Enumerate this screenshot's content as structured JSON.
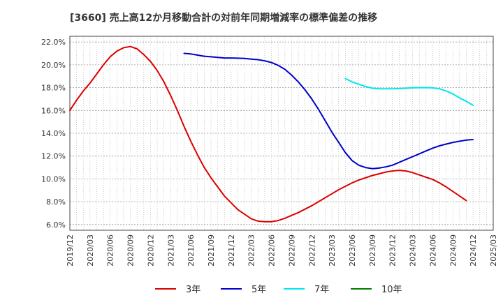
{
  "chart_data": {
    "type": "line",
    "title": "[3660]  売上高12か月移動合計の対前年同期増減率の標準偏差の推移",
    "xlabel": "",
    "ylabel": "",
    "ylim": [
      5.5,
      22.5
    ],
    "yticks": [
      6,
      8,
      10,
      12,
      14,
      16,
      18,
      20,
      22
    ],
    "ytick_labels": [
      "6.0%",
      "8.0%",
      "10.0%",
      "12.0%",
      "14.0%",
      "16.0%",
      "18.0%",
      "20.0%",
      "22.0%"
    ],
    "x_range": [
      "2019/12",
      "2025/03"
    ],
    "xtick_labels": [
      "2019/12",
      "2020/03",
      "2020/06",
      "2020/09",
      "2020/12",
      "2021/03",
      "2021/06",
      "2021/09",
      "2021/12",
      "2022/03",
      "2022/06",
      "2022/09",
      "2022/12",
      "2023/03",
      "2023/06",
      "2023/09",
      "2023/12",
      "2024/03",
      "2024/06",
      "2024/09",
      "2024/12",
      "2025/03"
    ],
    "grid": true,
    "legend_position": "bottom",
    "series": [
      {
        "name": "3年",
        "color": "#dd0000",
        "points": [
          [
            "2019/12",
            16.0
          ],
          [
            "2020/01",
            16.9
          ],
          [
            "2020/02",
            17.7
          ],
          [
            "2020/03",
            18.4
          ],
          [
            "2020/04",
            19.2
          ],
          [
            "2020/05",
            20.0
          ],
          [
            "2020/06",
            20.7
          ],
          [
            "2020/07",
            21.2
          ],
          [
            "2020/08",
            21.5
          ],
          [
            "2020/09",
            21.6
          ],
          [
            "2020/10",
            21.4
          ],
          [
            "2020/11",
            20.9
          ],
          [
            "2020/12",
            20.3
          ],
          [
            "2021/01",
            19.5
          ],
          [
            "2021/02",
            18.5
          ],
          [
            "2021/03",
            17.3
          ],
          [
            "2021/04",
            16.0
          ],
          [
            "2021/05",
            14.6
          ],
          [
            "2021/06",
            13.3
          ],
          [
            "2021/07",
            12.1
          ],
          [
            "2021/08",
            11.0
          ],
          [
            "2021/09",
            10.1
          ],
          [
            "2021/10",
            9.3
          ],
          [
            "2021/11",
            8.5
          ],
          [
            "2021/12",
            7.9
          ],
          [
            "2022/01",
            7.3
          ],
          [
            "2022/02",
            6.9
          ],
          [
            "2022/03",
            6.5
          ],
          [
            "2022/04",
            6.3
          ],
          [
            "2022/05",
            6.25
          ],
          [
            "2022/06",
            6.25
          ],
          [
            "2022/07",
            6.35
          ],
          [
            "2022/08",
            6.55
          ],
          [
            "2022/09",
            6.8
          ],
          [
            "2022/10",
            7.05
          ],
          [
            "2022/11",
            7.35
          ],
          [
            "2022/12",
            7.65
          ],
          [
            "2023/01",
            8.0
          ],
          [
            "2023/02",
            8.35
          ],
          [
            "2023/03",
            8.7
          ],
          [
            "2023/04",
            9.05
          ],
          [
            "2023/05",
            9.35
          ],
          [
            "2023/06",
            9.65
          ],
          [
            "2023/07",
            9.9
          ],
          [
            "2023/08",
            10.1
          ],
          [
            "2023/09",
            10.3
          ],
          [
            "2023/10",
            10.45
          ],
          [
            "2023/11",
            10.6
          ],
          [
            "2023/12",
            10.7
          ],
          [
            "2024/01",
            10.75
          ],
          [
            "2024/02",
            10.7
          ],
          [
            "2024/03",
            10.55
          ],
          [
            "2024/04",
            10.35
          ],
          [
            "2024/05",
            10.15
          ],
          [
            "2024/06",
            9.95
          ],
          [
            "2024/07",
            9.65
          ],
          [
            "2024/08",
            9.3
          ],
          [
            "2024/09",
            8.9
          ],
          [
            "2024/10",
            8.5
          ],
          [
            "2024/11",
            8.1
          ]
        ]
      },
      {
        "name": "5年",
        "color": "#0000cc",
        "points": [
          [
            "2021/05",
            21.0
          ],
          [
            "2021/06",
            20.95
          ],
          [
            "2021/07",
            20.85
          ],
          [
            "2021/08",
            20.75
          ],
          [
            "2021/09",
            20.7
          ],
          [
            "2021/10",
            20.65
          ],
          [
            "2021/11",
            20.6
          ],
          [
            "2021/12",
            20.6
          ],
          [
            "2022/01",
            20.58
          ],
          [
            "2022/02",
            20.56
          ],
          [
            "2022/03",
            20.5
          ],
          [
            "2022/04",
            20.45
          ],
          [
            "2022/05",
            20.35
          ],
          [
            "2022/06",
            20.2
          ],
          [
            "2022/07",
            19.95
          ],
          [
            "2022/08",
            19.6
          ],
          [
            "2022/09",
            19.1
          ],
          [
            "2022/10",
            18.5
          ],
          [
            "2022/11",
            17.8
          ],
          [
            "2022/12",
            17.0
          ],
          [
            "2023/01",
            16.1
          ],
          [
            "2023/02",
            15.1
          ],
          [
            "2023/03",
            14.1
          ],
          [
            "2023/04",
            13.2
          ],
          [
            "2023/05",
            12.3
          ],
          [
            "2023/06",
            11.6
          ],
          [
            "2023/07",
            11.2
          ],
          [
            "2023/08",
            11.0
          ],
          [
            "2023/09",
            10.9
          ],
          [
            "2023/10",
            10.95
          ],
          [
            "2023/11",
            11.05
          ],
          [
            "2023/12",
            11.2
          ],
          [
            "2024/01",
            11.45
          ],
          [
            "2024/02",
            11.7
          ],
          [
            "2024/03",
            11.95
          ],
          [
            "2024/04",
            12.2
          ],
          [
            "2024/05",
            12.45
          ],
          [
            "2024/06",
            12.7
          ],
          [
            "2024/07",
            12.9
          ],
          [
            "2024/08",
            13.05
          ],
          [
            "2024/09",
            13.2
          ],
          [
            "2024/10",
            13.3
          ],
          [
            "2024/11",
            13.4
          ],
          [
            "2024/12",
            13.45
          ]
        ]
      },
      {
        "name": "7年",
        "color": "#00e5ee",
        "points": [
          [
            "2023/05",
            18.8
          ],
          [
            "2023/06",
            18.5
          ],
          [
            "2023/07",
            18.3
          ],
          [
            "2023/08",
            18.1
          ],
          [
            "2023/09",
            17.95
          ],
          [
            "2023/10",
            17.9
          ],
          [
            "2023/11",
            17.9
          ],
          [
            "2023/12",
            17.9
          ],
          [
            "2024/01",
            17.92
          ],
          [
            "2024/02",
            17.95
          ],
          [
            "2024/03",
            17.98
          ],
          [
            "2024/04",
            18.0
          ],
          [
            "2024/05",
            18.0
          ],
          [
            "2024/06",
            17.98
          ],
          [
            "2024/07",
            17.9
          ],
          [
            "2024/08",
            17.7
          ],
          [
            "2024/09",
            17.45
          ],
          [
            "2024/10",
            17.1
          ],
          [
            "2024/11",
            16.8
          ],
          [
            "2024/12",
            16.45
          ]
        ]
      },
      {
        "name": "10年",
        "color": "#008000",
        "points": []
      }
    ]
  }
}
